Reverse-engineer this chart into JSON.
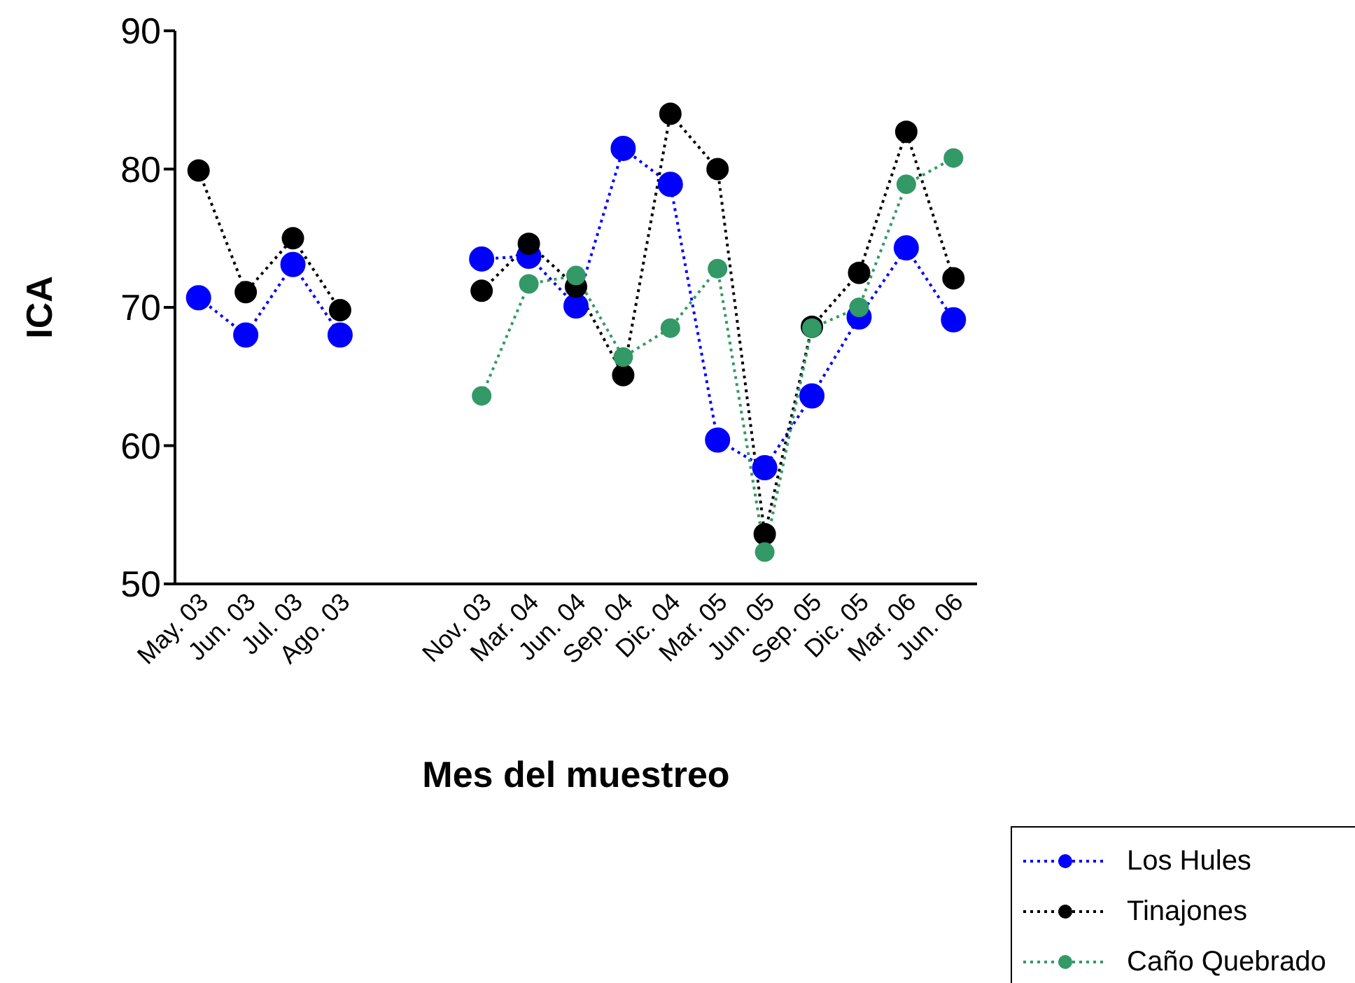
{
  "chart_data": {
    "type": "line",
    "xlabel": "Mes del muestreo",
    "ylabel": "ICA",
    "categories": [
      "May. 03",
      "Jun. 03",
      "Jul. 03",
      "Ago. 03",
      null,
      null,
      "Nov. 03",
      "Mar. 04",
      "Jun. 04",
      "Sep. 04",
      "Dic. 04",
      "Mar. 05",
      "Jun. 05",
      "Sep. 05",
      "Dic. 05",
      "Mar. 06",
      "Jun. 06"
    ],
    "series": [
      {
        "name": "Los Hules",
        "color": "#0000ff",
        "values": [
          70.7,
          68.0,
          73.1,
          68.0,
          null,
          null,
          73.5,
          73.7,
          70.1,
          81.5,
          78.9,
          60.4,
          58.4,
          63.6,
          69.3,
          74.3,
          69.1
        ]
      },
      {
        "name": "Tinajones",
        "color": "#000000",
        "values": [
          79.9,
          71.1,
          75.0,
          69.8,
          null,
          null,
          71.2,
          74.6,
          71.5,
          65.1,
          84.0,
          80.0,
          53.6,
          68.6,
          72.5,
          82.7,
          72.1
        ]
      },
      {
        "name": "Caño Quebrado",
        "color": "#339966",
        "values": [
          null,
          null,
          null,
          null,
          null,
          null,
          63.6,
          71.7,
          72.3,
          66.4,
          68.5,
          72.8,
          52.3,
          68.5,
          70.0,
          78.9,
          80.8
        ]
      }
    ],
    "ylim": [
      50,
      90
    ],
    "yticks": [
      50,
      60,
      70,
      80,
      90
    ],
    "grid": false,
    "legend": "bottom right",
    "marker": "circle",
    "line_style": "dotted"
  }
}
